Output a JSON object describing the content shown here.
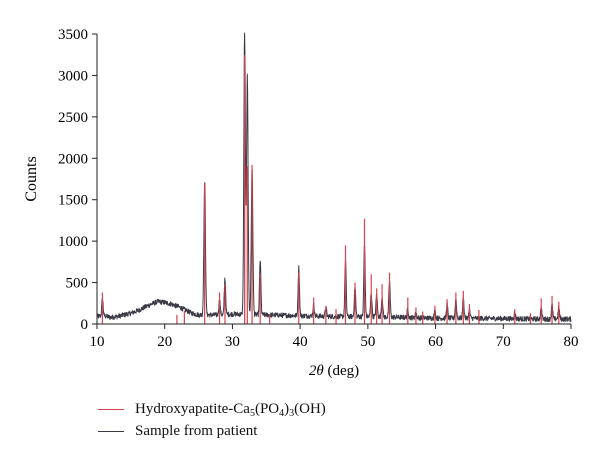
{
  "chart_data": {
    "type": "line",
    "xlabel_symbol": "2θ",
    "xlabel_unit": "(deg)",
    "ylabel": "Counts",
    "xlim": [
      10,
      80
    ],
    "ylim": [
      0,
      3500
    ],
    "x_ticks": [
      10,
      20,
      30,
      40,
      50,
      60,
      70,
      80
    ],
    "y_ticks": [
      0,
      500,
      1000,
      1500,
      2000,
      2500,
      3000,
      3500
    ],
    "grid": false,
    "legend_position": "bottom-left, below plot",
    "series": [
      {
        "name_parts": [
          "Hydroxyapatite-Ca",
          "5",
          "(PO",
          "4",
          ")",
          "3",
          "(OH)"
        ],
        "color": "#d9414e",
        "style": "reference stick peaks",
        "peaks": [
          [
            10.8,
            380
          ],
          [
            21.8,
            110
          ],
          [
            22.9,
            160
          ],
          [
            25.9,
            1700
          ],
          [
            28.1,
            380
          ],
          [
            28.9,
            480
          ],
          [
            31.8,
            3250
          ],
          [
            32.2,
            1900
          ],
          [
            32.9,
            1920
          ],
          [
            34.1,
            600
          ],
          [
            35.5,
            120
          ],
          [
            39.8,
            620
          ],
          [
            42.0,
            320
          ],
          [
            43.8,
            220
          ],
          [
            45.3,
            180
          ],
          [
            46.7,
            950
          ],
          [
            48.1,
            500
          ],
          [
            49.5,
            1270
          ],
          [
            50.5,
            600
          ],
          [
            51.3,
            430
          ],
          [
            52.1,
            480
          ],
          [
            53.2,
            620
          ],
          [
            55.9,
            320
          ],
          [
            57.1,
            200
          ],
          [
            58.1,
            150
          ],
          [
            59.9,
            220
          ],
          [
            61.7,
            300
          ],
          [
            63.0,
            380
          ],
          [
            64.1,
            400
          ],
          [
            65.0,
            240
          ],
          [
            66.4,
            170
          ],
          [
            71.7,
            180
          ],
          [
            74.0,
            130
          ],
          [
            75.6,
            310
          ],
          [
            77.2,
            340
          ],
          [
            78.2,
            270
          ]
        ]
      },
      {
        "name": "Sample from patient",
        "color": "#3a3a46",
        "style": "measured pattern",
        "baseline": [
          [
            10,
            90
          ],
          [
            11,
            100
          ],
          [
            12,
            80
          ],
          [
            13,
            90
          ],
          [
            14,
            110
          ],
          [
            15,
            130
          ],
          [
            16,
            160
          ],
          [
            17,
            200
          ],
          [
            18,
            240
          ],
          [
            19,
            270
          ],
          [
            20,
            260
          ],
          [
            21,
            240
          ],
          [
            22,
            210
          ],
          [
            23,
            170
          ],
          [
            24,
            130
          ],
          [
            25,
            110
          ],
          [
            26,
            110
          ],
          [
            27,
            110
          ],
          [
            28,
            110
          ],
          [
            30,
            120
          ],
          [
            35,
            110
          ],
          [
            40,
            100
          ],
          [
            45,
            90
          ],
          [
            50,
            90
          ],
          [
            55,
            80
          ],
          [
            60,
            70
          ],
          [
            65,
            70
          ],
          [
            70,
            65
          ],
          [
            75,
            60
          ],
          [
            80,
            60
          ]
        ],
        "peaks": [
          [
            10.8,
            300
          ],
          [
            21.8,
            170
          ],
          [
            22.9,
            150
          ],
          [
            25.9,
            1730
          ],
          [
            28.1,
            300
          ],
          [
            28.9,
            550
          ],
          [
            31.8,
            3500
          ],
          [
            32.2,
            2980
          ],
          [
            32.9,
            1900
          ],
          [
            34.1,
            780
          ],
          [
            39.8,
            680
          ],
          [
            42.0,
            230
          ],
          [
            43.8,
            200
          ],
          [
            46.7,
            770
          ],
          [
            48.1,
            450
          ],
          [
            49.5,
            960
          ],
          [
            50.5,
            380
          ],
          [
            51.3,
            360
          ],
          [
            52.1,
            330
          ],
          [
            53.2,
            520
          ],
          [
            55.9,
            180
          ],
          [
            57.1,
            140
          ],
          [
            59.9,
            160
          ],
          [
            61.7,
            240
          ],
          [
            63.0,
            300
          ],
          [
            64.1,
            310
          ],
          [
            65.0,
            170
          ],
          [
            71.7,
            140
          ],
          [
            75.6,
            200
          ],
          [
            77.2,
            230
          ],
          [
            78.2,
            200
          ]
        ]
      }
    ]
  }
}
